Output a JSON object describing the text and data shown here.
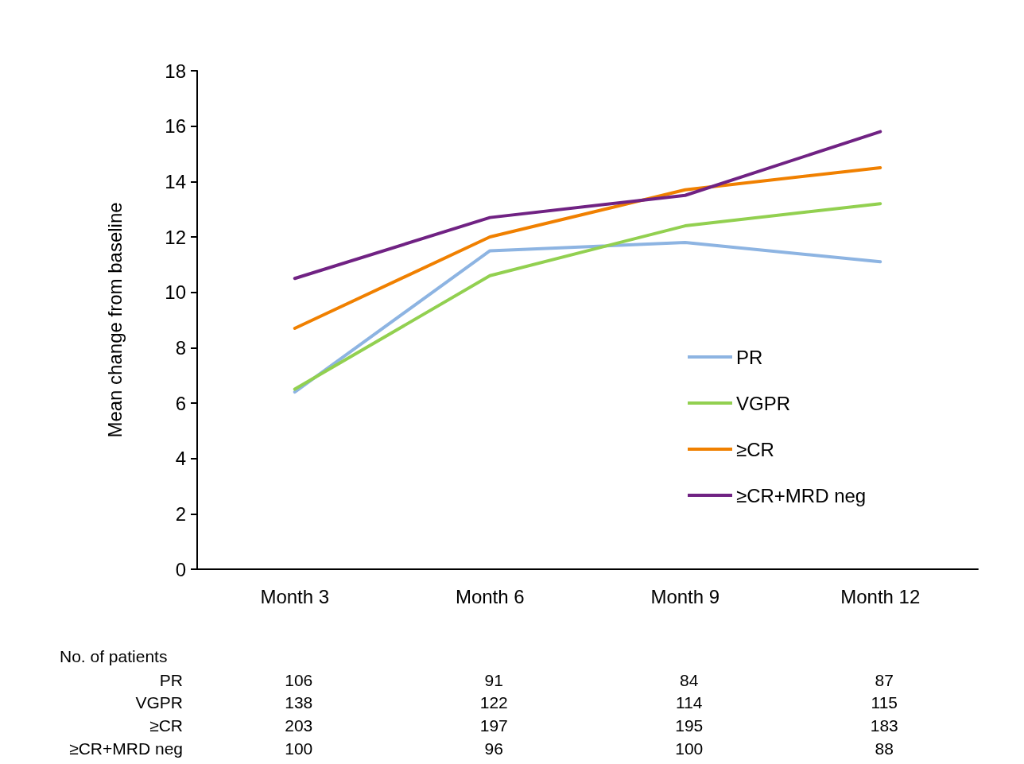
{
  "chart_data": {
    "type": "line",
    "ylabel": "Mean change from baseline",
    "categories": [
      "Month 3",
      "Month 6",
      "Month 9",
      "Month 12"
    ],
    "ylim": [
      0,
      18
    ],
    "yticks": [
      0,
      2,
      4,
      6,
      8,
      10,
      12,
      14,
      16,
      18
    ],
    "grid": false,
    "legend": "right",
    "marker": "none",
    "line_style": "solid",
    "series": [
      {
        "name": "PR",
        "color": "#8db4e2",
        "values": [
          6.4,
          11.5,
          11.8,
          11.1
        ]
      },
      {
        "name": "VGPR",
        "color": "#92d050",
        "values": [
          6.5,
          10.6,
          12.4,
          13.2
        ]
      },
      {
        "name": "≥CR",
        "color": "#f08000",
        "values": [
          8.7,
          12.0,
          13.7,
          14.5
        ]
      },
      {
        "name": "≥CR+MRD neg",
        "color": "#702283",
        "values": [
          10.5,
          12.7,
          13.5,
          15.8
        ]
      }
    ],
    "annotations": [
      "No. of patients",
      "106",
      "91",
      "84",
      "87",
      "138",
      "122",
      "114",
      "115",
      "203",
      "197",
      "195",
      "183",
      "100",
      "96",
      "100",
      "88"
    ]
  }
}
